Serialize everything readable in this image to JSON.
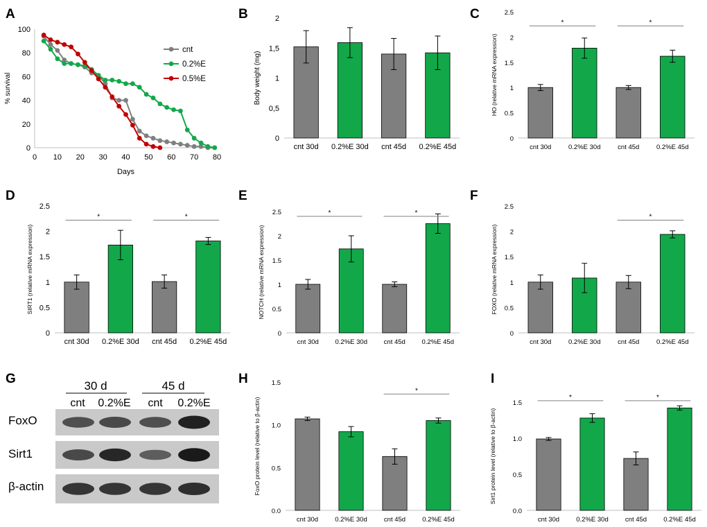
{
  "colors": {
    "cnt": "#7f7f7f",
    "treat": "#12a84a",
    "half": "#c00000",
    "axis": "#bfbfbf",
    "sig": "#808080"
  },
  "chart_data": [
    {
      "id": "A",
      "type": "line",
      "panel_label": "A",
      "xlabel": "Days",
      "ylabel": "% survival",
      "xlim": [
        0,
        80
      ],
      "ylim": [
        0,
        100
      ],
      "xticks": [
        0,
        10,
        20,
        30,
        40,
        50,
        60,
        70,
        80
      ],
      "yticks": [
        0,
        20,
        40,
        60,
        80,
        100
      ],
      "legend_position": "top-right",
      "series": [
        {
          "name": "cnt",
          "color": "#7f7f7f",
          "points": [
            [
              4,
              94
            ],
            [
              7,
              87
            ],
            [
              10,
              82
            ],
            [
              13,
              74
            ],
            [
              16,
              71
            ],
            [
              19,
              70
            ],
            [
              22,
              68
            ],
            [
              25,
              63
            ],
            [
              28,
              61
            ],
            [
              31,
              54
            ],
            [
              34,
              42
            ],
            [
              37,
              40
            ],
            [
              40,
              40
            ],
            [
              43,
              24
            ],
            [
              46,
              14
            ],
            [
              49,
              10
            ],
            [
              52,
              8
            ],
            [
              55,
              6
            ],
            [
              58,
              5
            ],
            [
              61,
              4
            ],
            [
              64,
              3
            ],
            [
              67,
              2
            ],
            [
              70,
              1
            ],
            [
              73,
              1
            ],
            [
              76,
              0
            ],
            [
              79,
              0
            ]
          ]
        },
        {
          "name": "0.2%E",
          "color": "#12a84a",
          "points": [
            [
              4,
              90
            ],
            [
              7,
              83
            ],
            [
              10,
              75
            ],
            [
              13,
              71
            ],
            [
              16,
              71
            ],
            [
              19,
              70
            ],
            [
              22,
              69
            ],
            [
              25,
              66
            ],
            [
              28,
              61
            ],
            [
              31,
              57
            ],
            [
              34,
              57
            ],
            [
              37,
              56
            ],
            [
              40,
              54
            ],
            [
              43,
              54
            ],
            [
              46,
              51
            ],
            [
              49,
              45
            ],
            [
              52,
              42
            ],
            [
              55,
              37
            ],
            [
              58,
              34
            ],
            [
              61,
              32
            ],
            [
              64,
              31
            ],
            [
              67,
              15
            ],
            [
              70,
              8
            ],
            [
              73,
              4
            ],
            [
              76,
              1
            ],
            [
              79,
              0
            ]
          ]
        },
        {
          "name": "0.5%E",
          "color": "#c00000",
          "points": [
            [
              4,
              95
            ],
            [
              7,
              91
            ],
            [
              10,
              89
            ],
            [
              13,
              87
            ],
            [
              16,
              85
            ],
            [
              19,
              79
            ],
            [
              22,
              72
            ],
            [
              25,
              65
            ],
            [
              28,
              58
            ],
            [
              31,
              51
            ],
            [
              34,
              43
            ],
            [
              37,
              35
            ],
            [
              40,
              28
            ],
            [
              43,
              19
            ],
            [
              46,
              8
            ],
            [
              49,
              3
            ],
            [
              52,
              1
            ],
            [
              55,
              0
            ]
          ]
        }
      ]
    },
    {
      "id": "B",
      "type": "bar",
      "panel_label": "B",
      "ylabel": "Body weight (mg)",
      "ylim": [
        0,
        2
      ],
      "yticks": [
        0,
        0.5,
        1,
        1.5,
        2
      ],
      "ytick_labels": [
        "0",
        "0,5",
        "1",
        "1,5",
        "2"
      ],
      "categories": [
        "cnt 30d",
        "0.2%E 30d",
        "cnt 45d",
        "0.2%E 45d"
      ],
      "values": [
        1.52,
        1.59,
        1.4,
        1.42
      ],
      "errors": [
        0.27,
        0.25,
        0.26,
        0.28
      ],
      "colors": [
        "#7f7f7f",
        "#12a84a",
        "#7f7f7f",
        "#12a84a"
      ],
      "significance": []
    },
    {
      "id": "C",
      "type": "bar",
      "panel_label": "C",
      "ylabel": "HO (relative mRNA expression)",
      "ylim": [
        0,
        2.5
      ],
      "yticks": [
        0,
        0.5,
        1,
        1.5,
        2,
        2.5
      ],
      "ytick_labels": [
        "0",
        "0.5",
        "1",
        "1.5",
        "2",
        "2.5"
      ],
      "categories": [
        "cnt 30d",
        "0.2%E 30d",
        "cnt 45d",
        "0.2%E 45d"
      ],
      "values": [
        1.0,
        1.78,
        1.0,
        1.62
      ],
      "errors": [
        0.06,
        0.2,
        0.04,
        0.12
      ],
      "colors": [
        "#7f7f7f",
        "#12a84a",
        "#7f7f7f",
        "#12a84a"
      ],
      "significance": [
        {
          "from": 0,
          "to": 1,
          "y": 2.22,
          "label": "*"
        },
        {
          "from": 2,
          "to": 3,
          "y": 2.22,
          "label": "*"
        }
      ]
    },
    {
      "id": "D",
      "type": "bar",
      "panel_label": "D",
      "ylabel": "SIRT1 (relative mRNA expression)",
      "ylim": [
        0,
        2.5
      ],
      "yticks": [
        0,
        0.5,
        1,
        1.5,
        2,
        2.5
      ],
      "ytick_labels": [
        "0",
        "0.5",
        "1",
        "1.5",
        "2",
        "2.5"
      ],
      "categories": [
        "cnt 30d",
        "0.2%E 30d",
        "cnt 45d",
        "0.2%E 45d"
      ],
      "values": [
        1.0,
        1.73,
        1.01,
        1.81
      ],
      "errors": [
        0.14,
        0.29,
        0.13,
        0.07
      ],
      "colors": [
        "#7f7f7f",
        "#12a84a",
        "#7f7f7f",
        "#12a84a"
      ],
      "significance": [
        {
          "from": 0,
          "to": 1,
          "y": 2.22,
          "label": "*"
        },
        {
          "from": 2,
          "to": 3,
          "y": 2.22,
          "label": "*"
        }
      ]
    },
    {
      "id": "E",
      "type": "bar",
      "panel_label": "E",
      "ylabel": "NOTCH (relative mRNA expression)",
      "ylim": [
        0,
        2.5
      ],
      "yticks": [
        0,
        0.5,
        1,
        1.5,
        2,
        2.5
      ],
      "ytick_labels": [
        "0",
        "0.5",
        "1",
        "1.5",
        "2",
        "2.5"
      ],
      "categories": [
        "cnt 30d",
        "0.2%E 30d",
        "cnt 45d",
        "0.2%E 45d"
      ],
      "values": [
        1.0,
        1.73,
        1.0,
        2.25
      ],
      "errors": [
        0.1,
        0.27,
        0.05,
        0.2
      ],
      "colors": [
        "#7f7f7f",
        "#12a84a",
        "#7f7f7f",
        "#12a84a"
      ],
      "significance": [
        {
          "from": 0,
          "to": 1,
          "y": 2.4,
          "label": "*"
        },
        {
          "from": 2,
          "to": 3,
          "y": 2.4,
          "label": "*"
        }
      ]
    },
    {
      "id": "F",
      "type": "bar",
      "panel_label": "F",
      "ylabel": "FOXO (relative mRNA expression)",
      "ylim": [
        0,
        2.5
      ],
      "yticks": [
        0,
        0.5,
        1,
        1.5,
        2,
        2.5
      ],
      "ytick_labels": [
        "0",
        "0.5",
        "1",
        "1.5",
        "2",
        "2.5"
      ],
      "categories": [
        "cnt 30d",
        "0.2%E 30d",
        "cnt 45d",
        "0.2%E 45d"
      ],
      "values": [
        1.0,
        1.08,
        1.0,
        1.94
      ],
      "errors": [
        0.14,
        0.29,
        0.13,
        0.07
      ],
      "colors": [
        "#7f7f7f",
        "#12a84a",
        "#7f7f7f",
        "#12a84a"
      ],
      "significance": [
        {
          "from": 2,
          "to": 3,
          "y": 2.22,
          "label": "*"
        }
      ]
    },
    {
      "id": "H",
      "type": "bar",
      "panel_label": "H",
      "ylabel": "FoxO protein level (relative to β-actin)",
      "ylim": [
        0,
        1.5
      ],
      "yticks": [
        0,
        0.5,
        1.0,
        1.5
      ],
      "ytick_labels": [
        "0.0",
        "0.5",
        "1.0",
        "1.5"
      ],
      "categories": [
        "cnt 30d",
        "0.2%E 30d",
        "cnt 45d",
        "0.2%E 45d"
      ],
      "values": [
        1.07,
        0.92,
        0.63,
        1.05
      ],
      "errors": [
        0.02,
        0.06,
        0.09,
        0.03
      ],
      "colors": [
        "#7f7f7f",
        "#12a84a",
        "#7f7f7f",
        "#12a84a"
      ],
      "significance": [
        {
          "from": 2,
          "to": 3,
          "y": 1.36,
          "label": "*"
        }
      ]
    },
    {
      "id": "I",
      "type": "bar",
      "panel_label": "I",
      "ylabel": "Sirt1 protein level (relative to β-actin)",
      "ylim": [
        0,
        1.5
      ],
      "yticks": [
        0,
        0.5,
        1.0,
        1.5
      ],
      "ytick_labels": [
        "0.0",
        "0.5",
        "1.0",
        "1.5"
      ],
      "categories": [
        "cnt 30d",
        "0.2%E 30d",
        "cnt 45d",
        "0.2%E 45d"
      ],
      "values": [
        0.99,
        1.28,
        0.72,
        1.42
      ],
      "errors": [
        0.02,
        0.06,
        0.09,
        0.03
      ],
      "colors": [
        "#7f7f7f",
        "#12a84a",
        "#7f7f7f",
        "#12a84a"
      ],
      "significance": [
        {
          "from": 0,
          "to": 1,
          "y": 1.52,
          "label": "*"
        },
        {
          "from": 2,
          "to": 3,
          "y": 1.52,
          "label": "*"
        }
      ]
    }
  ],
  "blot": {
    "panel_label": "G",
    "groups": [
      "30 d",
      "45 d"
    ],
    "lanes": [
      "cnt",
      "0.2%E",
      "cnt",
      "0.2%E"
    ],
    "rows": [
      {
        "name": "FoxO",
        "intensity": [
          0.55,
          0.6,
          0.55,
          0.9
        ]
      },
      {
        "name": "Sirt1",
        "intensity": [
          0.6,
          0.85,
          0.45,
          0.95
        ]
      },
      {
        "name": "β-actin",
        "intensity": [
          0.75,
          0.75,
          0.75,
          0.8
        ]
      }
    ]
  }
}
